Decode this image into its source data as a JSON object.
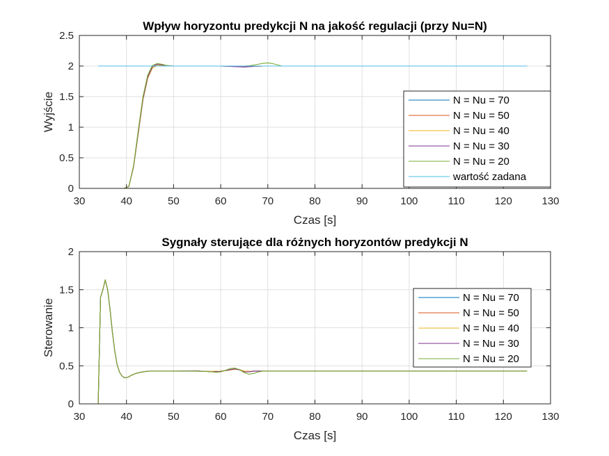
{
  "chart_data": [
    {
      "type": "line",
      "title": "Wpływ horyzontu predykcji N na jakość regulacji (przy Nu=N)",
      "xlabel": "Czas [s]",
      "ylabel": "Wyjście",
      "xlim": [
        30,
        130
      ],
      "ylim": [
        0,
        2.5
      ],
      "xticks": [
        "30",
        "40",
        "50",
        "60",
        "70",
        "80",
        "90",
        "100",
        "110",
        "120",
        "130"
      ],
      "yticks": [
        "0",
        "0.5",
        "1",
        "1.5",
        "2",
        "2.5"
      ],
      "grid": true,
      "legend_position": "lower-right",
      "series": [
        {
          "name": "N = Nu = 70",
          "color": "#0072BD",
          "x": [
            34,
            39.5,
            40.5,
            41.5,
            42.5,
            43.5,
            44.5,
            45.5,
            46.5,
            47.5,
            48.5,
            50,
            55,
            60,
            63,
            65,
            67,
            69,
            71,
            73,
            75,
            80,
            125
          ],
          "y": [
            0,
            0,
            0.03,
            0.35,
            0.9,
            1.45,
            1.8,
            1.97,
            2.01,
            2.01,
            2.0,
            2.0,
            2.0,
            2.0,
            1.995,
            1.985,
            1.995,
            2.0,
            2.0,
            2.0,
            2.0,
            2.0,
            2.0
          ]
        },
        {
          "name": "N = Nu = 50",
          "color": "#D95319",
          "x": [
            34,
            39.5,
            40.5,
            41.5,
            42.5,
            43.5,
            44.5,
            45.5,
            46.5,
            47.5,
            48.5,
            50,
            55,
            60,
            63,
            65,
            67,
            69,
            71,
            73,
            75,
            80,
            125
          ],
          "y": [
            0,
            0,
            0.03,
            0.35,
            0.9,
            1.45,
            1.8,
            1.97,
            2.01,
            2.01,
            2.0,
            2.0,
            2.0,
            2.0,
            1.995,
            1.99,
            1.995,
            2.0,
            2.0,
            2.0,
            2.0,
            2.0,
            2.0
          ]
        },
        {
          "name": "N = Nu = 40",
          "color": "#EDB120",
          "x": [
            34,
            39.5,
            40.5,
            41.5,
            42.5,
            43.5,
            44.5,
            45.5,
            46.5,
            47.5,
            48.5,
            50,
            55,
            60,
            63,
            65,
            67,
            69,
            71,
            73,
            75,
            80,
            125
          ],
          "y": [
            0,
            0,
            0.03,
            0.35,
            0.9,
            1.45,
            1.8,
            1.97,
            2.01,
            2.01,
            2.0,
            2.0,
            2.0,
            2.0,
            1.995,
            1.99,
            1.995,
            2.0,
            2.0,
            2.0,
            2.0,
            2.0,
            2.0
          ]
        },
        {
          "name": "N = Nu = 30",
          "color": "#7E2F8E",
          "x": [
            34,
            39.5,
            40.5,
            41.5,
            42.5,
            43.5,
            44.5,
            45.5,
            46.5,
            47.5,
            48.5,
            50,
            55,
            60,
            63,
            65,
            67,
            69,
            71,
            73,
            75,
            80,
            125
          ],
          "y": [
            0,
            0,
            0.03,
            0.36,
            0.92,
            1.47,
            1.82,
            1.99,
            2.03,
            2.02,
            2.01,
            2.0,
            2.0,
            2.0,
            1.99,
            1.985,
            1.995,
            2.0,
            2.0,
            2.0,
            2.0,
            2.0,
            2.0
          ]
        },
        {
          "name": "N = Nu = 20",
          "color": "#77AC30",
          "x": [
            34,
            39.5,
            40.5,
            41.5,
            42.5,
            43.5,
            44.5,
            45.5,
            46.5,
            47.5,
            48.5,
            50,
            55,
            60,
            63,
            65,
            66,
            67,
            68,
            69,
            70,
            71,
            72,
            73,
            75,
            80,
            125
          ],
          "y": [
            0,
            0,
            0.03,
            0.37,
            0.95,
            1.5,
            1.85,
            2.01,
            2.04,
            2.03,
            2.01,
            2.0,
            2.0,
            2.0,
            2.0,
            2.0,
            2.005,
            2.015,
            2.03,
            2.045,
            2.05,
            2.04,
            2.02,
            2.0,
            2.0,
            2.0,
            2.0
          ]
        },
        {
          "name": "wartość zadana",
          "color": "#4DBEEE",
          "x": [
            34,
            125
          ],
          "y": [
            2,
            2
          ]
        }
      ]
    },
    {
      "type": "line",
      "title": "Sygnały sterujące dla różnych horyzontów predykcji N",
      "xlabel": "Czas [s]",
      "ylabel": "Sterowanie",
      "xlim": [
        30,
        130
      ],
      "ylim": [
        0,
        2
      ],
      "xticks": [
        "30",
        "40",
        "50",
        "60",
        "70",
        "80",
        "90",
        "100",
        "110",
        "120",
        "130"
      ],
      "yticks": [
        "0",
        "0.5",
        "1",
        "1.5",
        "2"
      ],
      "grid": true,
      "legend_position": "right",
      "series": [
        {
          "name": "N = Nu = 70",
          "color": "#0072BD",
          "x": [
            34,
            34.5,
            35,
            35.5,
            36,
            36.5,
            37,
            37.5,
            38,
            38.5,
            39,
            39.5,
            40,
            40.5,
            41,
            42,
            43,
            44,
            45,
            50,
            55,
            58,
            60,
            62,
            63,
            64,
            65,
            66,
            67,
            68,
            70,
            75,
            125
          ],
          "y": [
            0,
            1.4,
            1.5,
            1.63,
            1.5,
            1.25,
            0.95,
            0.7,
            0.52,
            0.42,
            0.37,
            0.345,
            0.345,
            0.355,
            0.375,
            0.4,
            0.415,
            0.425,
            0.43,
            0.43,
            0.43,
            0.425,
            0.43,
            0.445,
            0.455,
            0.45,
            0.43,
            0.425,
            0.43,
            0.43,
            0.43,
            0.43,
            0.43
          ]
        },
        {
          "name": "N = Nu = 50",
          "color": "#D95319",
          "x": [
            34,
            34.5,
            35,
            35.5,
            36,
            36.5,
            37,
            37.5,
            38,
            38.5,
            39,
            39.5,
            40,
            40.5,
            41,
            42,
            43,
            44,
            45,
            50,
            55,
            58,
            60,
            62,
            63,
            64,
            65,
            66,
            67,
            68,
            70,
            75,
            125
          ],
          "y": [
            0,
            1.4,
            1.5,
            1.63,
            1.5,
            1.25,
            0.95,
            0.7,
            0.52,
            0.42,
            0.37,
            0.345,
            0.345,
            0.355,
            0.375,
            0.4,
            0.415,
            0.425,
            0.43,
            0.43,
            0.43,
            0.425,
            0.43,
            0.445,
            0.455,
            0.45,
            0.43,
            0.425,
            0.43,
            0.43,
            0.43,
            0.43,
            0.43
          ]
        },
        {
          "name": "N = Nu = 40",
          "color": "#EDB120",
          "x": [
            34,
            34.5,
            35,
            35.5,
            36,
            36.5,
            37,
            37.5,
            38,
            38.5,
            39,
            39.5,
            40,
            40.5,
            41,
            42,
            43,
            44,
            45,
            50,
            55,
            58,
            60,
            62,
            63,
            64,
            65,
            66,
            67,
            68,
            70,
            75,
            125
          ],
          "y": [
            0,
            1.4,
            1.5,
            1.63,
            1.5,
            1.25,
            0.95,
            0.7,
            0.52,
            0.42,
            0.37,
            0.345,
            0.345,
            0.355,
            0.375,
            0.4,
            0.415,
            0.425,
            0.43,
            0.43,
            0.43,
            0.425,
            0.43,
            0.445,
            0.455,
            0.45,
            0.43,
            0.425,
            0.43,
            0.43,
            0.43,
            0.43,
            0.43
          ]
        },
        {
          "name": "N = Nu = 30",
          "color": "#7E2F8E",
          "x": [
            34,
            34.5,
            35,
            35.5,
            36,
            36.5,
            37,
            37.5,
            38,
            38.5,
            39,
            39.5,
            40,
            40.5,
            41,
            42,
            43,
            44,
            45,
            50,
            55,
            58,
            60,
            62,
            63,
            64,
            65,
            66,
            67,
            68,
            70,
            75,
            125
          ],
          "y": [
            0,
            1.4,
            1.5,
            1.63,
            1.5,
            1.25,
            0.95,
            0.7,
            0.52,
            0.42,
            0.37,
            0.345,
            0.345,
            0.355,
            0.375,
            0.4,
            0.415,
            0.425,
            0.43,
            0.43,
            0.435,
            0.42,
            0.425,
            0.45,
            0.46,
            0.445,
            0.42,
            0.42,
            0.43,
            0.43,
            0.43,
            0.43,
            0.43
          ]
        },
        {
          "name": "N = Nu = 20",
          "color": "#77AC30",
          "x": [
            34,
            34.5,
            35,
            35.5,
            36,
            36.5,
            37,
            37.5,
            38,
            38.5,
            39,
            39.5,
            40,
            40.5,
            41,
            42,
            43,
            44,
            45,
            50,
            55,
            57,
            58,
            59,
            60,
            61,
            62,
            63,
            64,
            65,
            66,
            67,
            68,
            69,
            70,
            75,
            125
          ],
          "y": [
            0,
            1.4,
            1.5,
            1.63,
            1.5,
            1.25,
            0.95,
            0.7,
            0.52,
            0.42,
            0.37,
            0.345,
            0.345,
            0.355,
            0.375,
            0.4,
            0.415,
            0.425,
            0.43,
            0.43,
            0.43,
            0.425,
            0.42,
            0.415,
            0.42,
            0.44,
            0.465,
            0.47,
            0.45,
            0.41,
            0.39,
            0.4,
            0.42,
            0.43,
            0.43,
            0.43,
            0.43
          ]
        }
      ]
    }
  ]
}
